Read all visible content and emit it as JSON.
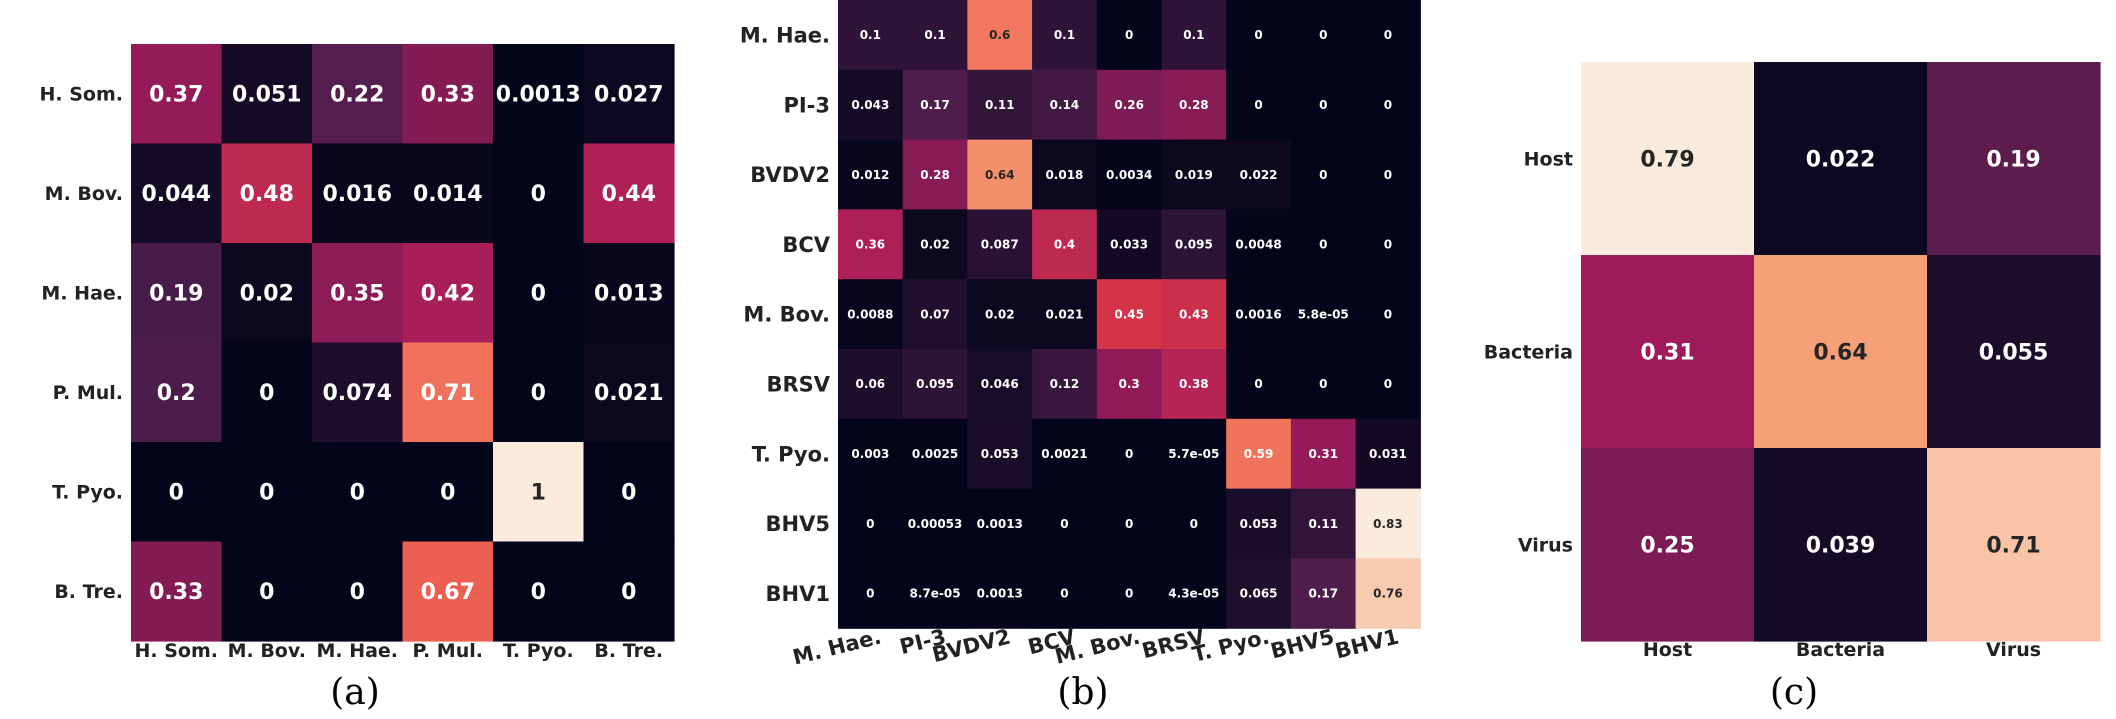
{
  "chart_data": [
    {
      "type": "heatmap",
      "caption": "(a)",
      "x_labels": [
        "H. Som.",
        "M. Bov.",
        "M. Hae.",
        "P. Mul.",
        "T. Pyo.",
        "B. Tre."
      ],
      "y_labels": [
        "H. Som.",
        "M. Bov.",
        "M. Hae.",
        "P. Mul.",
        "T. Pyo.",
        "B. Tre."
      ],
      "values": [
        [
          0.37,
          0.051,
          0.22,
          0.33,
          0.0013,
          0.027
        ],
        [
          0.044,
          0.48,
          0.016,
          0.014,
          0,
          0.44
        ],
        [
          0.19,
          0.02,
          0.35,
          0.42,
          0,
          0.013
        ],
        [
          0.2,
          0,
          0.074,
          0.71,
          0,
          0.021
        ],
        [
          0,
          0,
          0,
          0,
          1,
          0
        ],
        [
          0.33,
          0,
          0,
          0.67,
          0,
          0
        ]
      ],
      "labels": [
        [
          "0.37",
          "0.051",
          "0.22",
          "0.33",
          "0.0013",
          "0.027"
        ],
        [
          "0.044",
          "0.48",
          "0.016",
          "0.014",
          "0",
          "0.44"
        ],
        [
          "0.19",
          "0.02",
          "0.35",
          "0.42",
          "0",
          "0.013"
        ],
        [
          "0.2",
          "0",
          "0.074",
          "0.71",
          "0",
          "0.021"
        ],
        [
          "0",
          "0",
          "0",
          "0",
          "1",
          "0"
        ],
        [
          "0.33",
          "0",
          "0",
          "0.67",
          "0",
          "0"
        ]
      ]
    },
    {
      "type": "heatmap",
      "caption": "(b)",
      "x_labels": [
        "M. Hae.",
        "PI-3",
        "BVDV2",
        "BCV",
        "M. Bov.",
        "BRSV",
        "T. Pyo.",
        "BHV5",
        "BHV1"
      ],
      "y_labels": [
        "M. Hae.",
        "PI-3",
        "BVDV2",
        "BCV",
        "M. Bov.",
        "BRSV",
        "T. Pyo.",
        "BHV5",
        "BHV1"
      ],
      "values": [
        [
          0.1,
          0.1,
          0.6,
          0.1,
          0,
          0.1,
          0,
          0,
          0
        ],
        [
          0.043,
          0.17,
          0.11,
          0.14,
          0.26,
          0.28,
          0,
          0,
          0
        ],
        [
          0.012,
          0.28,
          0.64,
          0.018,
          0.0034,
          0.019,
          0.022,
          0,
          0
        ],
        [
          0.36,
          0.02,
          0.087,
          0.4,
          0.033,
          0.095,
          0.0048,
          0,
          0
        ],
        [
          0.0088,
          0.07,
          0.02,
          0.021,
          0.45,
          0.43,
          0.0016,
          5.8e-05,
          0
        ],
        [
          0.06,
          0.095,
          0.046,
          0.12,
          0.3,
          0.38,
          0,
          0,
          0
        ],
        [
          0.003,
          0.0025,
          0.053,
          0.0021,
          0,
          5.7e-05,
          0.59,
          0.31,
          0.031
        ],
        [
          0,
          0.00053,
          0.0013,
          0,
          0,
          0,
          0.053,
          0.11,
          0.83
        ],
        [
          0,
          8.7e-05,
          0.0013,
          0,
          0,
          4.3e-05,
          0.065,
          0.17,
          0.76
        ]
      ],
      "labels": [
        [
          "0.1",
          "0.1",
          "0.6",
          "0.1",
          "0",
          "0.1",
          "0",
          "0",
          "0"
        ],
        [
          "0.043",
          "0.17",
          "0.11",
          "0.14",
          "0.26",
          "0.28",
          "0",
          "0",
          "0"
        ],
        [
          "0.012",
          "0.28",
          "0.64",
          "0.018",
          "0.0034",
          "0.019",
          "0.022",
          "0",
          "0"
        ],
        [
          "0.36",
          "0.02",
          "0.087",
          "0.4",
          "0.033",
          "0.095",
          "0.0048",
          "0",
          "0"
        ],
        [
          "0.0088",
          "0.07",
          "0.02",
          "0.021",
          "0.45",
          "0.43",
          "0.0016",
          "5.8e-05",
          "0"
        ],
        [
          "0.06",
          "0.095",
          "0.046",
          "0.12",
          "0.3",
          "0.38",
          "0",
          "0",
          "0"
        ],
        [
          "0.003",
          "0.0025",
          "0.053",
          "0.0021",
          "0",
          "5.7e-05",
          "0.59",
          "0.31",
          "0.031"
        ],
        [
          "0",
          "0.00053",
          "0.0013",
          "0",
          "0",
          "0",
          "0.053",
          "0.11",
          "0.83"
        ],
        [
          "0",
          "8.7e-05",
          "0.0013",
          "0",
          "0",
          "4.3e-05",
          "0.065",
          "0.17",
          "0.76"
        ]
      ]
    },
    {
      "type": "heatmap",
      "caption": "(c)",
      "x_labels": [
        "Host",
        "Bacteria",
        "Virus"
      ],
      "y_labels": [
        "Host",
        "Bacteria",
        "Virus"
      ],
      "values": [
        [
          0.79,
          0.022,
          0.19
        ],
        [
          0.31,
          0.64,
          0.055
        ],
        [
          0.25,
          0.039,
          0.71
        ]
      ],
      "labels": [
        [
          "0.79",
          "0.022",
          "0.19"
        ],
        [
          "0.31",
          "0.64",
          "0.055"
        ],
        [
          "0.25",
          "0.039",
          "0.71"
        ]
      ]
    }
  ],
  "colormap": [
    "#03051a",
    "#4c1d4b",
    "#a11a5b",
    "#e83f3f",
    "#f69c73",
    "#faebdd"
  ]
}
